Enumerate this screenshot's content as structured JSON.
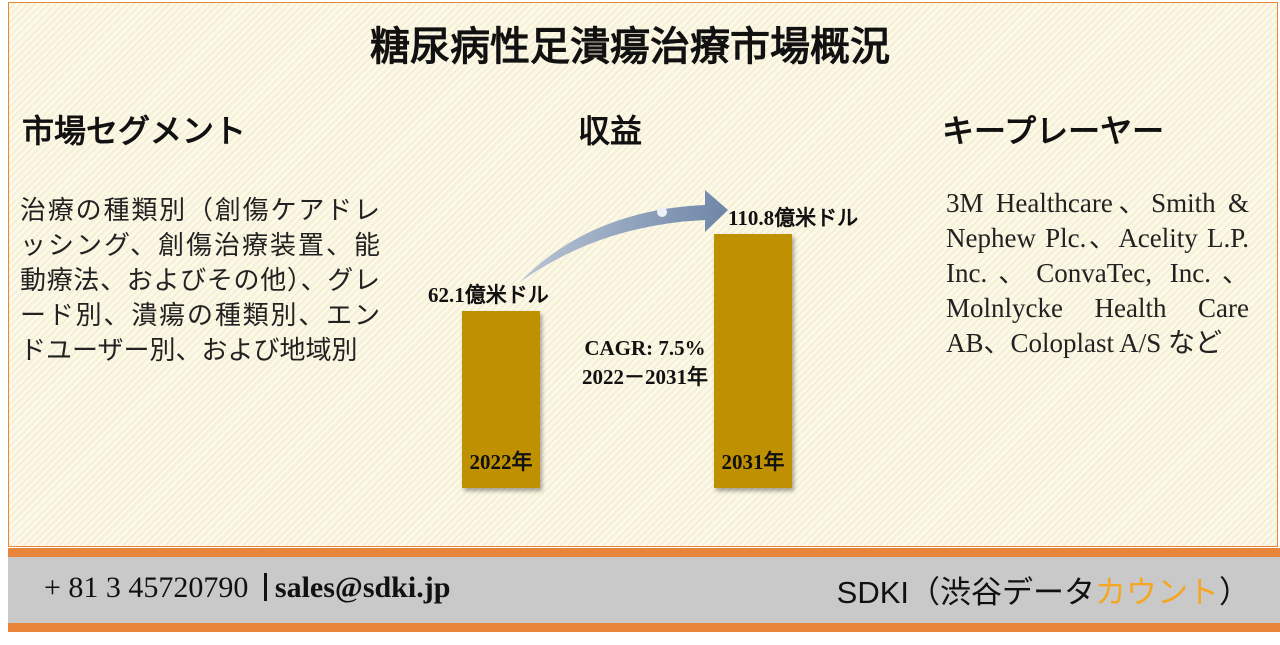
{
  "title": "糖尿病性足潰瘍治療市場概況",
  "segments": {
    "heading": "市場セグメント",
    "text": "治療の種類別（創傷ケアドレッシング、創傷治療装置、能動療法、およびその他）、グレード別、潰瘍の種類別、エンドユーザー別、および地域別"
  },
  "chart_data": {
    "type": "bar",
    "title": "収益",
    "categories": [
      "2022年",
      "2031年"
    ],
    "values": [
      62.1,
      110.8
    ],
    "value_labels": [
      "62.1億米ドル",
      "110.8億米ドル"
    ],
    "color": "#bf9000",
    "annotations": [
      "CAGR: 7.5%",
      "2022－2031年"
    ]
  },
  "players": {
    "heading": "キープレーヤー",
    "text": "3M Healthcare、Smith & Nephew Plc.、Acelity L.P. Inc.、ConvaTec, Inc.、Molnlycke Health Care AB、Coloplast A/S など"
  },
  "footer": {
    "phone": "+ 81 3 45720790",
    "email": "sales@sdki.jp",
    "brand": "SDKI（渋谷データ",
    "brand_highlight": "カウント",
    "brand_end": "）"
  }
}
